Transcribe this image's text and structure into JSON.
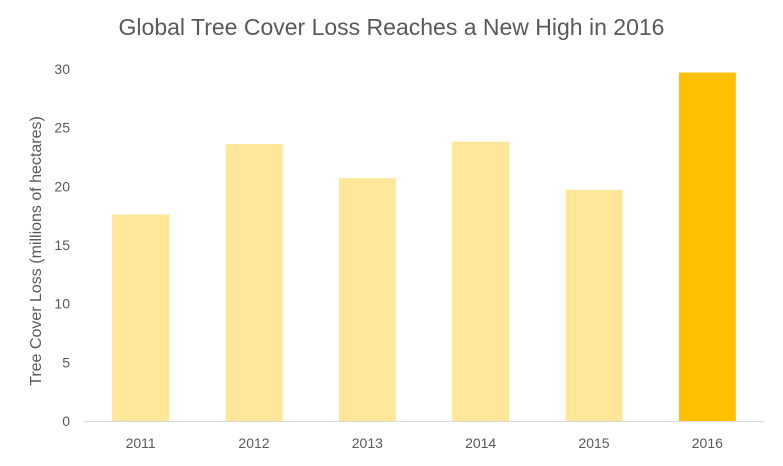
{
  "chart_data": {
    "type": "bar",
    "title": "Global Tree Cover Loss Reaches a New High in 2016",
    "xlabel": "",
    "ylabel": "Tree Cover Loss (millions of hectares)",
    "categories": [
      "2011",
      "2012",
      "2013",
      "2014",
      "2015",
      "2016"
    ],
    "values": [
      17.6,
      23.6,
      20.7,
      23.8,
      19.7,
      29.7
    ],
    "ylim": [
      0,
      30
    ],
    "yticks": [
      "0",
      "5",
      "10",
      "15",
      "20",
      "25",
      "30"
    ],
    "grid": false,
    "legend": "none",
    "colors": {
      "bar": "#ffe699",
      "highlight": "#ffc000",
      "highlight_category": "2016",
      "axis": "#d9d9d9",
      "text": "#595959"
    }
  }
}
